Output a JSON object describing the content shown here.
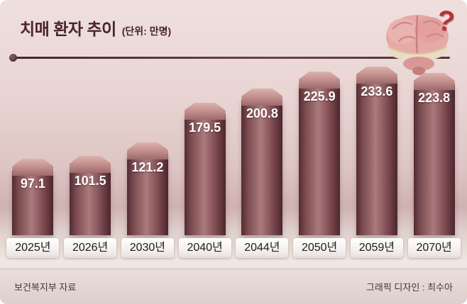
{
  "header": {
    "title": "치매 환자 추이",
    "unit": "(단위: 만명)"
  },
  "brain": {
    "question_mark": "?"
  },
  "footer": {
    "source": "보건복지부 자료",
    "credit": "그래픽 디자인 : 최수아"
  },
  "colors": {
    "background_top": "#eedfdd",
    "bar_dark": "#542b32",
    "bar_light": "#aa7a7c",
    "cap_light": "#dcb3ae",
    "title_text": "#4a232c",
    "value_text": "#ffffff",
    "question_mark": "#b43531"
  },
  "chart_data": {
    "type": "bar",
    "title": "치매 환자 추이",
    "subtitle": "(단위: 만명)",
    "categories": [
      "2025년",
      "2026년",
      "2030년",
      "2040년",
      "2044년",
      "2050년",
      "2059년",
      "2070년"
    ],
    "values": [
      97.1,
      101.5,
      121.2,
      179.5,
      200.8,
      225.9,
      233.6,
      223.8
    ],
    "xlabel": "",
    "ylabel": "만명",
    "ylim": [
      0,
      240
    ],
    "grid": false,
    "legend": "none",
    "source": "보건복지부 자료"
  }
}
